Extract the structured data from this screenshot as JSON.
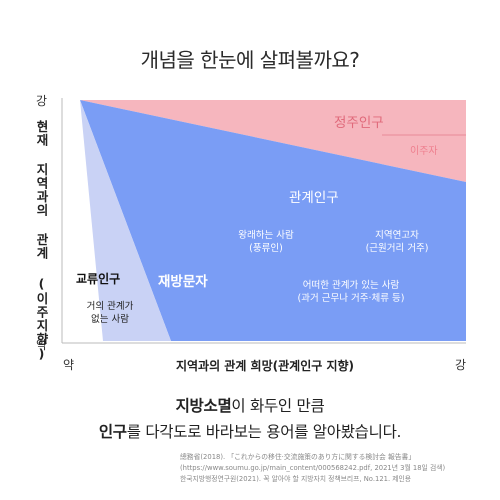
{
  "title": "개념을 한눈에 살펴볼까요?",
  "axes": {
    "y_title": "현재 지역과의 관계 (이주지향)",
    "y_strong": "강",
    "y_weak": "약",
    "x_title": "지역과의 관계 희망(관계인구 지향)",
    "x_weak": "약",
    "x_strong": "강"
  },
  "regions": {
    "settled": "정주인구",
    "migrant": "이주자",
    "related": "관계인구",
    "wandering": "왕래하는 사람 (풍류인)",
    "local_ties": "지역연고자 (근원거리 거주)",
    "past_ties": "어떠한 관계가 있는 사람 (과거 근무나 거주·체류 등)",
    "visiting": "재방문자",
    "exchange": "교류인구",
    "exchange_sub": "거의 관계가 없는 사람"
  },
  "caption": {
    "line1_bold": "지방소멸",
    "line1_rest": "이 화두인 만큼",
    "line2_bold": "인구",
    "line2_rest": "를 다각도로 바라보는 용어를 알아봤습니다."
  },
  "source": {
    "line1": "總務省(2018). 「これからの移住·交流施策のあり方に関する検討会 報告書」",
    "line2": "(https://www.soumu.go.jp/main_content/000568242.pdf, 2021년 3월 18일 검색)",
    "line3": "한국지방행정연구원(2021). 꼭 알아야 할 지방자치 정책브리프, No.121. 제인용"
  },
  "colors": {
    "settled": "#f6b6be",
    "related": "#7a9df5",
    "visiting": "#c9d2f5",
    "settled_text": "#e06a7b",
    "white": "#ffffff"
  }
}
